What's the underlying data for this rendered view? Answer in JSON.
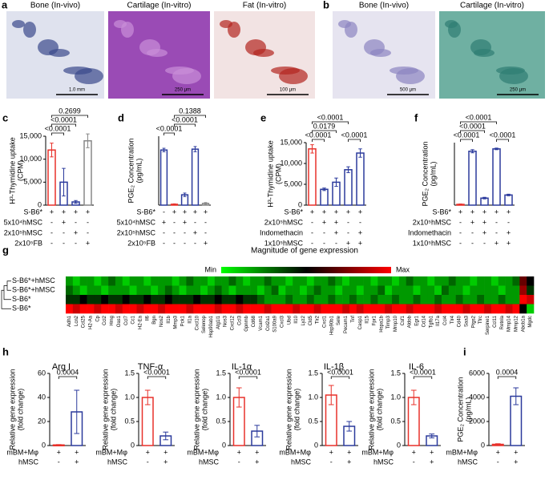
{
  "images": [
    {
      "panel": "a",
      "label": "Bone (In-vivo)",
      "scale": "1.0 mm"
    },
    {
      "label": "Cartilage (In-vitro)",
      "scale": "250 μm"
    },
    {
      "label": "Fat (In-vitro)",
      "scale": "100 μm"
    },
    {
      "panel": "b",
      "label": "Bone (In-vivo)",
      "scale": "500 μm"
    },
    {
      "label": "Cartilage (In-vitro)",
      "scale": "250 μm"
    }
  ],
  "chart_data": [
    {
      "type": "bar",
      "panel": "c",
      "ylabel": [
        "H³-Thymidine uptake",
        "(CPM)"
      ],
      "values": [
        12000,
        5000,
        700,
        14000
      ],
      "errors": [
        1500,
        3000,
        300,
        1500
      ],
      "colors": [
        "#e8312a",
        "#2b3a9c",
        "#2b3a9c",
        "#888888"
      ],
      "ylim": [
        0,
        15000
      ],
      "yticks": [
        0,
        {
          "value": 5000,
          "label": "5,000"
        },
        {
          "value": 10000,
          "label": "10,000"
        },
        {
          "value": 15000,
          "label": "15,000"
        }
      ],
      "comparisons": [
        {
          "label": "<0.0001",
          "bars": [
            0,
            1
          ]
        },
        {
          "label": "<0.0001",
          "bars": [
            0,
            2
          ]
        },
        {
          "label": "0.2699",
          "bars": [
            0,
            3
          ]
        }
      ],
      "conditions": [
        {
          "label": "S-B6*",
          "signs": [
            "+",
            "+",
            "+",
            "+"
          ]
        },
        {
          "label": "5x10⁴hMSC",
          "signs": [
            "-",
            "+",
            "-",
            "-"
          ]
        },
        {
          "label": "2x10⁵hMSC",
          "signs": [
            "-",
            "-",
            "+",
            "-"
          ]
        },
        {
          "label": "2x10⁵FB",
          "signs": [
            "-",
            "-",
            "-",
            "+"
          ]
        }
      ]
    },
    {
      "type": "bar",
      "panel": "d",
      "ylabel": [
        "PGE₂ Concentration",
        "(pg/mL)"
      ],
      "values": [
        6400,
        100,
        1200,
        6500,
        200
      ],
      "errors": [
        200,
        50,
        200,
        300,
        100
      ],
      "colors": [
        "#2b3a9c",
        "#e8312a",
        "#2b3a9c",
        "#2b3a9c",
        "#888888"
      ],
      "ylim": [
        0,
        8000
      ],
      "comparisons": [
        {
          "label": "<0.0001",
          "bars": [
            0,
            1
          ]
        },
        {
          "label": "<0.0001",
          "bars": [
            1,
            3
          ]
        },
        {
          "label": "0.1388",
          "bars": [
            1,
            4
          ]
        }
      ],
      "conditions": [
        {
          "label": "S-B6*",
          "signs": [
            "-",
            "+",
            "+",
            "+",
            "+"
          ]
        },
        {
          "label": "5x10⁴hMSC",
          "signs": [
            "+",
            "-",
            "+",
            "-",
            "-"
          ]
        },
        {
          "label": "2x10⁵hMSC",
          "signs": [
            "-",
            "-",
            "-",
            "+",
            "-"
          ]
        },
        {
          "label": "2x10⁵FB",
          "signs": [
            "-",
            "-",
            "-",
            "-",
            "+"
          ]
        }
      ]
    },
    {
      "type": "bar",
      "panel": "e",
      "ylabel": [
        "H³-Thymidine uptake",
        "(CPM)"
      ],
      "values": [
        13500,
        3800,
        5500,
        8500,
        12500
      ],
      "errors": [
        1000,
        300,
        1000,
        700,
        1000
      ],
      "colors": [
        "#e8312a",
        "#2b3a9c",
        "#2b3a9c",
        "#2b3a9c",
        "#2b3a9c"
      ],
      "ylim": [
        0,
        15000
      ],
      "yticks": [
        0,
        {
          "value": 5000,
          "label": "5,000"
        },
        {
          "value": 10000,
          "label": "10,000"
        },
        {
          "value": 15000,
          "label": "15,000"
        }
      ],
      "comparisons": [
        {
          "label": "<0.0001",
          "bars": [
            0,
            1
          ]
        },
        {
          "label": "<0.0001",
          "bars": [
            3,
            4
          ]
        },
        {
          "label": "0.0179",
          "bars": [
            0,
            2
          ]
        },
        {
          "label": "<0.0001",
          "bars": [
            0,
            3
          ]
        }
      ],
      "conditions": [
        {
          "label": "S-B6*",
          "signs": [
            "+",
            "+",
            "+",
            "+",
            "+"
          ]
        },
        {
          "label": "2x10⁵hMSC",
          "signs": [
            "-",
            "+",
            "+",
            "-",
            "-"
          ]
        },
        {
          "label": "Indomethacin",
          "signs": [
            "-",
            "-",
            "+",
            "-",
            "+"
          ]
        },
        {
          "label": "1x10⁵hMSC",
          "signs": [
            "-",
            "-",
            "-",
            "+",
            "+"
          ]
        }
      ]
    },
    {
      "type": "bar",
      "panel": "f",
      "ylabel": [
        "PGE₂ Concentration",
        "(pg/mL)"
      ],
      "values": [
        100,
        6900,
        900,
        7200,
        1300
      ],
      "errors": [
        50,
        200,
        100,
        100,
        100
      ],
      "colors": [
        "#e8312a",
        "#2b3a9c",
        "#2b3a9c",
        "#2b3a9c",
        "#2b3a9c"
      ],
      "ylim": [
        0,
        8000
      ],
      "comparisons": [
        {
          "label": "<0.0001",
          "bars": [
            0,
            1
          ]
        },
        {
          "label": "<0.0001",
          "bars": [
            3,
            4
          ]
        },
        {
          "label": "<0.0001",
          "bars": [
            0,
            2
          ]
        },
        {
          "label": "<0.0001",
          "bars": [
            0,
            3
          ]
        }
      ],
      "conditions": [
        {
          "label": "S-B6*",
          "signs": [
            "+",
            "+",
            "+",
            "+",
            "+"
          ]
        },
        {
          "label": "2x10⁵hMSC",
          "signs": [
            "-",
            "+",
            "+",
            "-",
            "-"
          ]
        },
        {
          "label": "Indomethacin",
          "signs": [
            "-",
            "-",
            "+",
            "-",
            "+"
          ]
        },
        {
          "label": "1x10⁵hMSC",
          "signs": [
            "-",
            "-",
            "-",
            "+",
            "+"
          ]
        }
      ]
    },
    {
      "type": "heatmap",
      "panel": "g",
      "title": "Magnitude of gene expression",
      "min_label": "Min",
      "max_label": "Max",
      "rows": [
        "S-B6*+hMSC",
        "S-B6*+hMSC",
        "S-B6*",
        "S-B6*"
      ],
      "columns": [
        "Adh1",
        "Lcn2",
        "Ccl25",
        "H2-Aa",
        "Cp",
        "Ccl2",
        "Hmg",
        "Oas1",
        "Ccl7",
        "Cc1",
        "H2-Ea",
        "Il6",
        "Bgn",
        "Nos2",
        "Il1b",
        "Mmp3",
        "Pck1",
        "Il1a",
        "Cxcl10",
        "Selenop",
        "Hsp90ab1",
        "Atg1l1",
        "Nos3",
        "Cxcl12",
        "Ccl3",
        "Gpnmb",
        "Cd68",
        "Vcam1",
        "Col2a1",
        "S100a9",
        "Cxcl3",
        "Ubd",
        "Il10",
        "Lyz2",
        "Cld5",
        "Tlr2",
        "Cxcl1",
        "Hsp90b1",
        "Sele",
        "Pecam1",
        "Tnf",
        "Casp1",
        "Il15",
        "Fpr1",
        "Hspa1b",
        "Timp3",
        "Mmp10",
        "Csf1",
        "Aldob",
        "Egr1",
        "Cd14",
        "Tgfb1",
        "Il17a",
        "Ccl4",
        "Tlr4",
        "Cd40",
        "Saa3",
        "Ptgs2",
        "Tfrc",
        "Serpine1",
        "Ccl11",
        "Retnla",
        "Mmp14",
        "Mmp12",
        "Abcb1a",
        "Mgdc"
      ],
      "values": [
        [
          0.2,
          0.1,
          0.2,
          0.2,
          0.1,
          0.2,
          0.3,
          0.2,
          0.1,
          0.2,
          0.2,
          0.1,
          0.2,
          0.2,
          0.2,
          0.1,
          0.2,
          0.3,
          0.2,
          0.2,
          0.1,
          0.2,
          0.2,
          0.3,
          0.2,
          0.1,
          0.2,
          0.2,
          0.3,
          0.2,
          0.2,
          0.1,
          0.2,
          0.2,
          0.1,
          0.2,
          0.2,
          0.3,
          0.2,
          0.1,
          0.2,
          0.2,
          0.2,
          0.1,
          0.2,
          0.2,
          0.1,
          0.2,
          0.3,
          0.2,
          0.2,
          0.1,
          0.2,
          0.2,
          0.3,
          0.2,
          0.2,
          0.1,
          0.2,
          0.2,
          0.1,
          0.2,
          0.2,
          0.3,
          0.7,
          0.5
        ],
        [
          0.3,
          0.2,
          0.1,
          0.2,
          0.2,
          0.1,
          0.2,
          0.2,
          0.2,
          0.1,
          0.2,
          0.2,
          0.1,
          0.2,
          0.3,
          0.2,
          0.1,
          0.2,
          0.2,
          0.1,
          0.2,
          0.3,
          0.2,
          0.1,
          0.2,
          0.2,
          0.2,
          0.1,
          0.2,
          0.3,
          0.1,
          0.2,
          0.2,
          0.1,
          0.2,
          0.3,
          0.2,
          0.2,
          0.1,
          0.2,
          0.2,
          0.1,
          0.2,
          0.2,
          0.3,
          0.1,
          0.2,
          0.2,
          0.2,
          0.1,
          0.2,
          0.2,
          0.1,
          0.3,
          0.2,
          0.2,
          0.1,
          0.2,
          0.2,
          0.2,
          0.2,
          0.1,
          0.2,
          0.2,
          0.8,
          0.4
        ],
        [
          0.4,
          0.4,
          0.5,
          0.4,
          0.4,
          0.5,
          0.4,
          0.4,
          0.5,
          0.4,
          0.4,
          0.5,
          0.4,
          0.4,
          0.5,
          0.4,
          0.4,
          0.4,
          0.5,
          0.4,
          0.4,
          0.5,
          0.4,
          0.4,
          0.5,
          0.4,
          0.4,
          0.3,
          0.2,
          0.2,
          0.2,
          0.3,
          0.2,
          0.2,
          0.3,
          0.2,
          0.2,
          0.3,
          0.2,
          0.2,
          0.3,
          0.2,
          0.2,
          0.3,
          0.2,
          0.2,
          0.3,
          0.2,
          0.2,
          0.3,
          0.2,
          0.2,
          0.3,
          0.2,
          0.2,
          0.3,
          0.2,
          0.2,
          0.3,
          0.2,
          0.2,
          0.3,
          0.2,
          0.2,
          1.0,
          0.9
        ],
        [
          1.0,
          0.9,
          1.0,
          1.0,
          0.9,
          1.0,
          1.0,
          0.9,
          1.0,
          1.0,
          0.9,
          1.0,
          1.0,
          0.9,
          1.0,
          1.0,
          1.0,
          0.9,
          1.0,
          1.0,
          1.0,
          0.9,
          1.0,
          1.0,
          0.9,
          1.0,
          1.0,
          1.0,
          0.9,
          1.0,
          1.0,
          1.0,
          0.9,
          1.0,
          1.0,
          0.9,
          1.0,
          1.0,
          1.0,
          0.9,
          1.0,
          0.9,
          1.0,
          1.0,
          1.0,
          0.9,
          1.0,
          1.0,
          0.9,
          1.0,
          1.0,
          1.0,
          0.9,
          1.0,
          1.0,
          1.0,
          0.9,
          1.0,
          1.0,
          0.9,
          1.0,
          1.0,
          0.9,
          1.0,
          0.5,
          0.1
        ]
      ]
    },
    {
      "type": "bar",
      "panel": "h",
      "title": "Arg I",
      "ylabel": [
        "Relative gene expression",
        "(fold change)"
      ],
      "values": [
        0.5,
        28
      ],
      "errors": [
        0.3,
        18
      ],
      "colors": [
        "#e8312a",
        "#2b3a9c"
      ],
      "ylim": [
        0,
        60
      ],
      "yticks": [
        0,
        20,
        40,
        60
      ],
      "comparisons": [
        {
          "label": "0.0004",
          "bars": [
            0,
            1
          ]
        }
      ],
      "conditions": [
        {
          "label": "mBM+Mφ",
          "signs": [
            "+",
            "+"
          ]
        },
        {
          "label": "hMSC",
          "signs": [
            "-",
            "+"
          ]
        }
      ]
    },
    {
      "type": "bar",
      "title": "TNF-α",
      "ylabel": [
        "Relative gene expression",
        "(fold change)"
      ],
      "values": [
        1.0,
        0.2
      ],
      "errors": [
        0.15,
        0.08
      ],
      "colors": [
        "#e8312a",
        "#2b3a9c"
      ],
      "ylim": [
        0,
        1.5
      ],
      "yticks": [
        0,
        0.5,
        {
          "value": 1,
          "label": "1.0"
        },
        1.5
      ],
      "comparisons": [
        {
          "label": "<0.0001",
          "bars": [
            0,
            1
          ]
        }
      ],
      "conditions": [
        {
          "label": "mBM+Mφ",
          "signs": [
            "+",
            "+"
          ]
        },
        {
          "label": "hMSC",
          "signs": [
            "-",
            "+"
          ]
        }
      ]
    },
    {
      "type": "bar",
      "title": "IL-1α",
      "ylabel": [
        "Relative gene expression",
        "(fold change)"
      ],
      "values": [
        1.0,
        0.3
      ],
      "errors": [
        0.2,
        0.12
      ],
      "colors": [
        "#e8312a",
        "#2b3a9c"
      ],
      "ylim": [
        0,
        1.5
      ],
      "yticks": [
        0,
        0.5,
        {
          "value": 1,
          "label": "1.0"
        },
        1.5
      ],
      "comparisons": [
        {
          "label": "<0.0001",
          "bars": [
            0,
            1
          ]
        }
      ],
      "conditions": [
        {
          "label": "mBM+Mφ",
          "signs": [
            "+",
            "+"
          ]
        },
        {
          "label": "hMSC",
          "signs": [
            "-",
            "+"
          ]
        }
      ]
    },
    {
      "type": "bar",
      "title": "IL-1β",
      "ylabel": [
        "Relative gene expression",
        "(fold change)"
      ],
      "values": [
        1.05,
        0.4
      ],
      "errors": [
        0.2,
        0.1
      ],
      "colors": [
        "#e8312a",
        "#2b3a9c"
      ],
      "ylim": [
        0,
        1.5
      ],
      "yticks": [
        0,
        0.5,
        {
          "value": 1,
          "label": "1.0"
        },
        1.5
      ],
      "comparisons": [
        {
          "label": "<0.0001",
          "bars": [
            0,
            1
          ]
        }
      ],
      "conditions": [
        {
          "label": "mBM+Mφ",
          "signs": [
            "+",
            "+"
          ]
        },
        {
          "label": "hMSC",
          "signs": [
            "-",
            "+"
          ]
        }
      ]
    },
    {
      "type": "bar",
      "title": "IL-6",
      "ylabel": [
        "Relative gene expression",
        "(fold change)"
      ],
      "values": [
        1.0,
        0.2
      ],
      "errors": [
        0.15,
        0.04
      ],
      "colors": [
        "#e8312a",
        "#2b3a9c"
      ],
      "ylim": [
        0,
        1.5
      ],
      "yticks": [
        0,
        0.5,
        {
          "value": 1,
          "label": "1.0"
        },
        1.5
      ],
      "comparisons": [
        {
          "label": "<0.0001",
          "bars": [
            0,
            1
          ]
        }
      ],
      "conditions": [
        {
          "label": "mBM+Mφ",
          "signs": [
            "+",
            "+"
          ]
        },
        {
          "label": "hMSC",
          "signs": [
            "-",
            "+"
          ]
        }
      ]
    },
    {
      "type": "bar",
      "panel": "i",
      "ylabel": [
        "PGE₂ Concentration",
        "(pg/mL)"
      ],
      "values": [
        100,
        4100
      ],
      "errors": [
        50,
        700
      ],
      "colors": [
        "#e8312a",
        "#2b3a9c"
      ],
      "ylim": [
        0,
        6000
      ],
      "yticks": [
        0,
        2000,
        4000,
        6000
      ],
      "comparisons": [
        {
          "label": "0.0004",
          "bars": [
            0,
            1
          ]
        }
      ],
      "conditions": [
        {
          "label": "mBM+Mφ",
          "signs": [
            "+",
            "+"
          ]
        },
        {
          "label": "hMSC",
          "signs": [
            "-",
            "+"
          ]
        }
      ]
    }
  ]
}
